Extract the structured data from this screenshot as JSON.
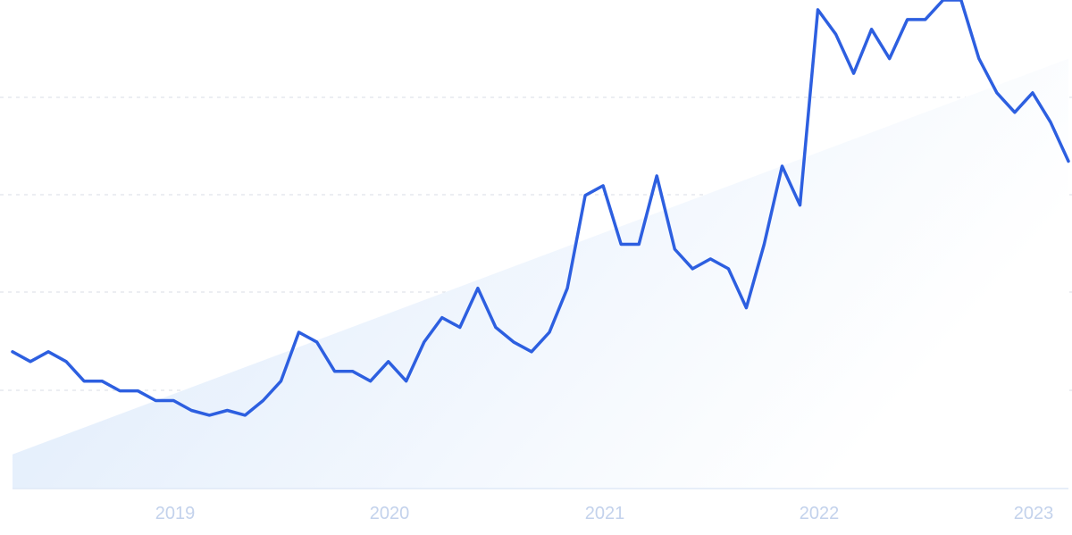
{
  "chart_data": {
    "type": "line",
    "x_tick_labels": [
      "2019",
      "2020",
      "2021",
      "2022",
      "2023"
    ],
    "ylim": [
      0,
      100
    ],
    "grid": "horizontal dashed",
    "series": [
      {
        "values": [
          28,
          26,
          28,
          26,
          22,
          22,
          20,
          20,
          18,
          18,
          16,
          15,
          16,
          15,
          18,
          22,
          32,
          30,
          24,
          24,
          22,
          26,
          22,
          30,
          35,
          33,
          41,
          33,
          30,
          28,
          32,
          41,
          60,
          62,
          50,
          50,
          64,
          49,
          45,
          47,
          45,
          37,
          50,
          66,
          58,
          98,
          93,
          85,
          94,
          88,
          96,
          96,
          100,
          100,
          88,
          81,
          77,
          81,
          75,
          67
        ]
      }
    ],
    "trend": [
      7,
      88
    ]
  },
  "colors": {
    "line": "#2d5fe0",
    "area_start": "#dbe9fb",
    "area_end": "#ffffff",
    "grid": "#d9dee6",
    "tick_label": "#c3d2ec"
  }
}
